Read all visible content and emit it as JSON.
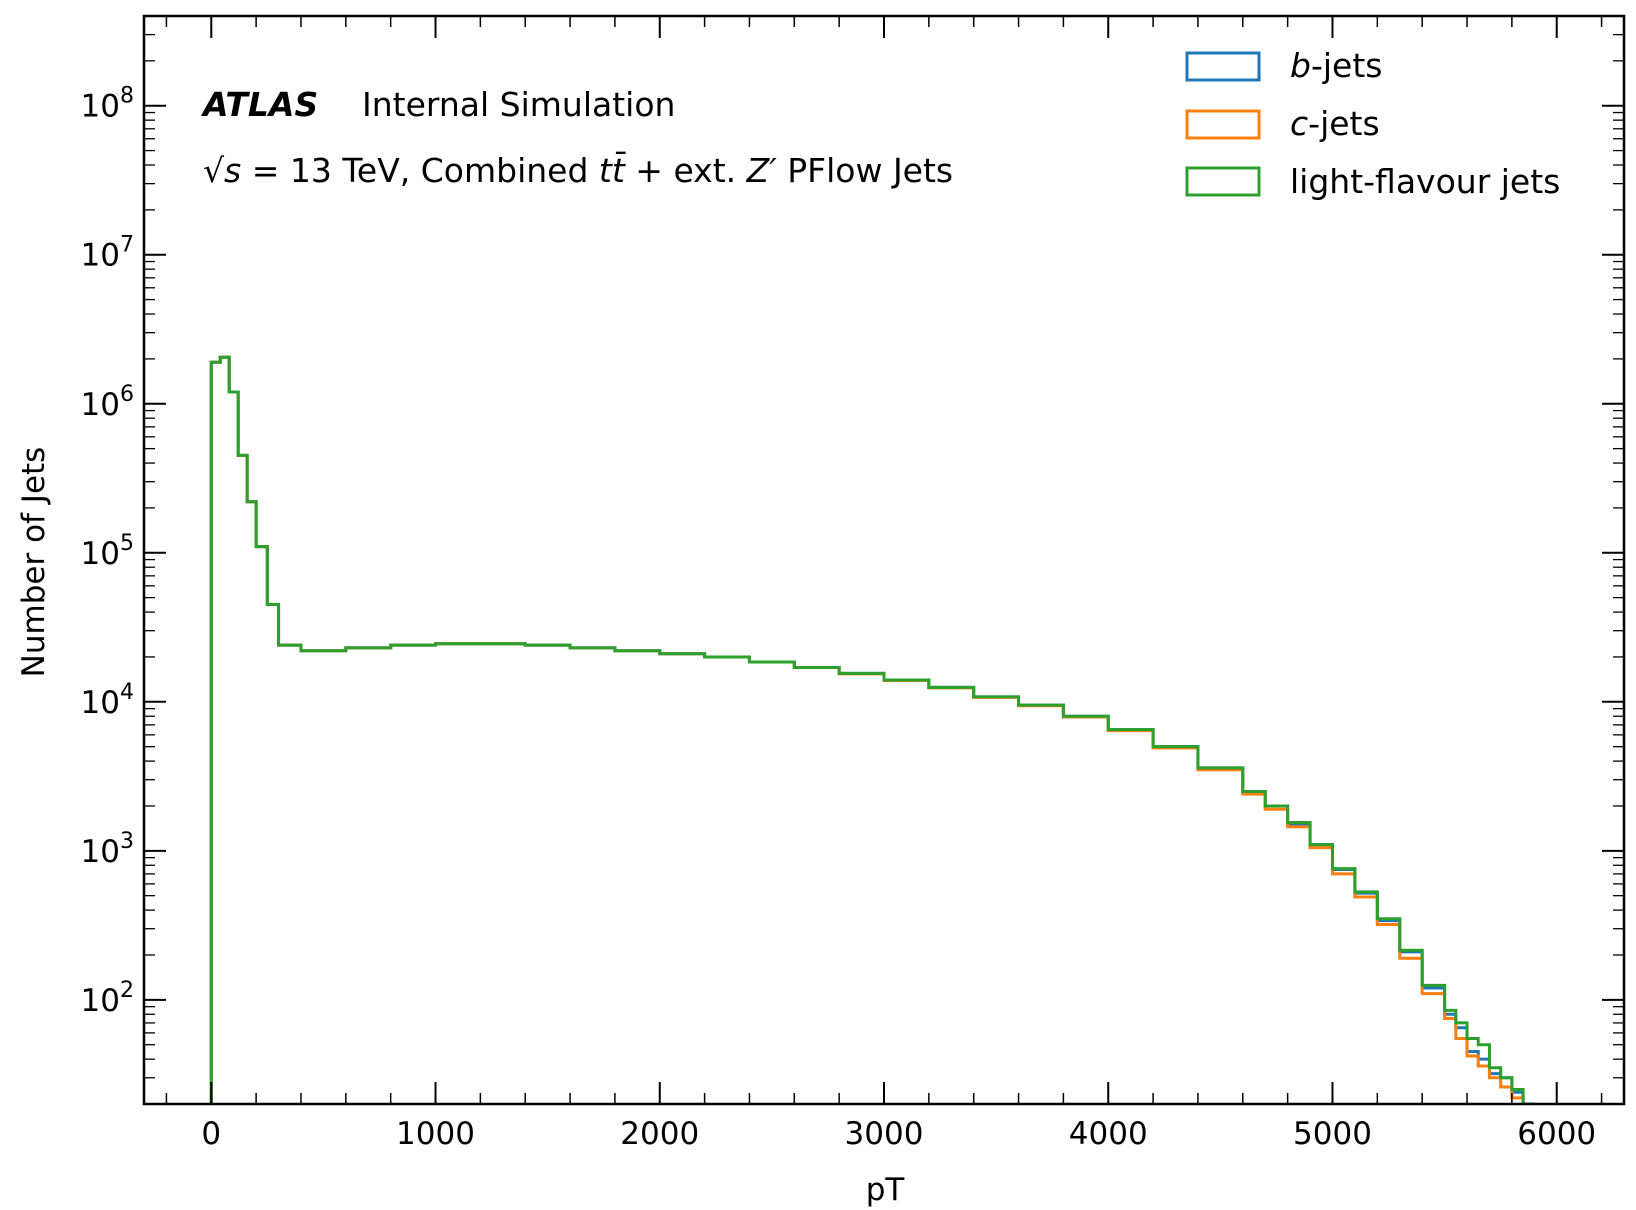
{
  "chart_data": {
    "type": "line",
    "subtype": "step-histogram",
    "xlabel": "pT",
    "ylabel": "Number of Jets",
    "xlim": [
      -300,
      6300
    ],
    "ylim": [
      20,
      400000000
    ],
    "yscale": "log",
    "x_ticks": [
      0,
      1000,
      2000,
      3000,
      4000,
      5000,
      6000
    ],
    "x_tick_labels": [
      "0",
      "1000",
      "2000",
      "3000",
      "4000",
      "5000",
      "6000"
    ],
    "y_ticks": [
      100,
      1000,
      10000,
      100000,
      1000000,
      10000000,
      100000000
    ],
    "y_tick_exponents": [
      "2",
      "3",
      "4",
      "5",
      "6",
      "7",
      "8"
    ],
    "y_tick_base": "10",
    "grid": false,
    "legend_placement": "top-right",
    "atlas_label": "ATLAS",
    "atlas_sublabel": "Internal Simulation",
    "energy_label_parts": {
      "sqrt": "√",
      "s": "s",
      "eq": " = 13 TeV, Combined ",
      "t": "t",
      "tbar": "t̄",
      "plus": " +  ext. ",
      "z": "Z′",
      "rest": " PFlow Jets"
    },
    "series": [
      {
        "name": "b-jets",
        "legend_italic": "b",
        "legend_rest": "-jets",
        "color": "#1f77b4",
        "x": [
          0,
          40,
          80,
          120,
          160,
          200,
          250,
          300,
          400,
          500,
          600,
          800,
          1000,
          1200,
          1400,
          1600,
          1800,
          2000,
          2200,
          2400,
          2600,
          2800,
          3000,
          3200,
          3400,
          3600,
          3800,
          4000,
          4200,
          4400,
          4600,
          4700,
          4800,
          4900,
          5000,
          5100,
          5200,
          5300,
          5400,
          5500,
          5550,
          5600,
          5650,
          5700,
          5750,
          5800,
          5850
        ],
        "y": [
          1900000,
          2050000,
          1200000,
          450000,
          220000,
          110000,
          45000,
          24000,
          22000,
          22000,
          23000,
          24000,
          24500,
          24500,
          24000,
          23000,
          22000,
          21000,
          20000,
          18500,
          17000,
          15500,
          14000,
          12500,
          10800,
          9500,
          8000,
          6500,
          5000,
          3600,
          2500,
          2000,
          1500,
          1100,
          750,
          520,
          340,
          210,
          120,
          80,
          65,
          45,
          40,
          32,
          30,
          24,
          20
        ]
      },
      {
        "name": "c-jets",
        "legend_italic": "c",
        "legend_rest": "-jets",
        "color": "#ff7f0e",
        "x": [
          0,
          40,
          80,
          120,
          160,
          200,
          250,
          300,
          400,
          500,
          600,
          800,
          1000,
          1200,
          1400,
          1600,
          1800,
          2000,
          2200,
          2400,
          2600,
          2800,
          3000,
          3200,
          3400,
          3600,
          3800,
          4000,
          4200,
          4400,
          4600,
          4700,
          4800,
          4900,
          5000,
          5100,
          5200,
          5300,
          5400,
          5500,
          5550,
          5600,
          5650,
          5700,
          5750,
          5800,
          5850
        ],
        "y": [
          1900000,
          2050000,
          1200000,
          450000,
          220000,
          110000,
          45000,
          24000,
          22000,
          22000,
          23000,
          24000,
          24500,
          24500,
          24000,
          23000,
          22000,
          21000,
          20000,
          18500,
          17000,
          15400,
          13900,
          12400,
          10700,
          9400,
          7900,
          6400,
          4900,
          3500,
          2400,
          1900,
          1450,
          1050,
          700,
          490,
          320,
          190,
          110,
          75,
          55,
          42,
          36,
          30,
          26,
          22,
          20
        ]
      },
      {
        "name": "light-flavour jets",
        "legend_italic": "",
        "legend_rest": "light-flavour jets",
        "color": "#2ca02c",
        "x": [
          0,
          40,
          80,
          120,
          160,
          200,
          250,
          300,
          400,
          500,
          600,
          800,
          1000,
          1200,
          1400,
          1600,
          1800,
          2000,
          2200,
          2400,
          2600,
          2800,
          3000,
          3200,
          3400,
          3600,
          3800,
          4000,
          4200,
          4400,
          4600,
          4700,
          4800,
          4900,
          5000,
          5100,
          5200,
          5300,
          5400,
          5500,
          5550,
          5600,
          5650,
          5700,
          5750,
          5800,
          5850
        ],
        "y": [
          1900000,
          2050000,
          1200000,
          450000,
          220000,
          110000,
          45000,
          24000,
          22000,
          22000,
          23000,
          24000,
          24500,
          24500,
          24000,
          23000,
          22000,
          21000,
          20000,
          18500,
          17000,
          15500,
          14000,
          12500,
          10800,
          9500,
          8000,
          6500,
          5000,
          3600,
          2500,
          2000,
          1550,
          1100,
          760,
          530,
          350,
          215,
          125,
          85,
          70,
          55,
          50,
          35,
          30,
          25,
          20
        ]
      }
    ]
  }
}
